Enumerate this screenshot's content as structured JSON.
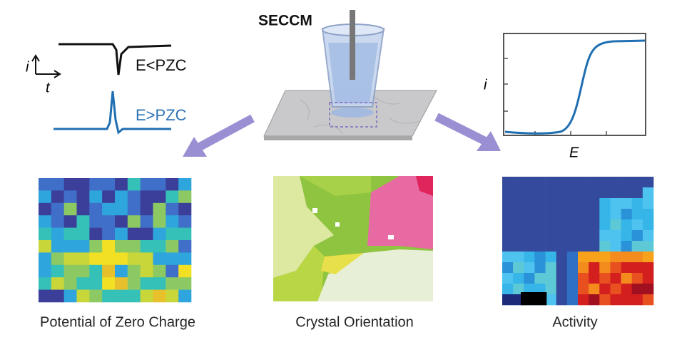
{
  "title": "SECCM",
  "transient": {
    "y_axis": "i",
    "x_axis": "t",
    "low_label": "E<PZC",
    "high_label": "E>PZC"
  },
  "voltammogram": {
    "y_axis": "i",
    "x_axis": "E"
  },
  "panels": [
    {
      "caption": "Potential of Zero Charge"
    },
    {
      "caption": "Crystal Orientation"
    },
    {
      "caption": "Activity"
    }
  ]
}
